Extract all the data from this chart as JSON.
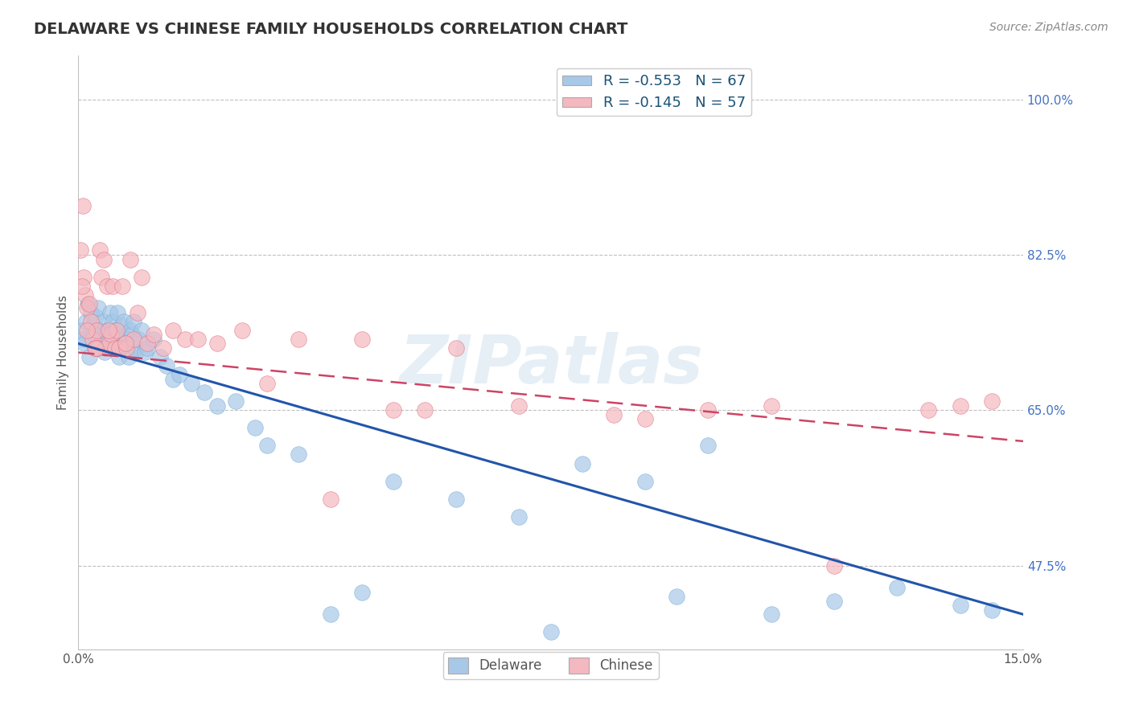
{
  "title": "DELAWARE VS CHINESE FAMILY HOUSEHOLDS CORRELATION CHART",
  "source": "Source: ZipAtlas.com",
  "ylabel": "Family Households",
  "xlim": [
    0.0,
    15.0
  ],
  "ylim": [
    38.0,
    105.0
  ],
  "yticks": [
    47.5,
    65.0,
    82.5,
    100.0
  ],
  "ytick_labels": [
    "47.5%",
    "65.0%",
    "82.5%",
    "100.0%"
  ],
  "delaware_color": "#a8c8e8",
  "delaware_edge": "#7aafd4",
  "chinese_color": "#f4b8c0",
  "chinese_edge": "#e07080",
  "delaware_line_color": "#2255aa",
  "chinese_line_color": "#cc4466",
  "delaware_R": -0.553,
  "delaware_N": 67,
  "chinese_R": -0.145,
  "chinese_N": 57,
  "legend_label_delaware": "Delaware",
  "legend_label_chinese": "Chinese",
  "watermark": "ZIPatlas",
  "title_fontsize": 14,
  "axis_label_fontsize": 11,
  "tick_fontsize": 11,
  "source_fontsize": 10,
  "delaware_scatter_x": [
    0.05,
    0.08,
    0.1,
    0.12,
    0.15,
    0.18,
    0.2,
    0.22,
    0.25,
    0.28,
    0.3,
    0.32,
    0.35,
    0.38,
    0.4,
    0.42,
    0.45,
    0.48,
    0.5,
    0.52,
    0.55,
    0.58,
    0.6,
    0.62,
    0.65,
    0.68,
    0.7,
    0.72,
    0.75,
    0.78,
    0.8,
    0.82,
    0.85,
    0.88,
    0.9,
    0.92,
    0.95,
    1.0,
    1.05,
    1.1,
    1.2,
    1.3,
    1.4,
    1.5,
    1.6,
    1.8,
    2.0,
    2.2,
    2.5,
    2.8,
    3.0,
    3.5,
    4.0,
    4.5,
    5.0,
    6.0,
    7.0,
    8.0,
    9.0,
    10.0,
    11.0,
    12.0,
    13.0,
    14.0,
    14.5,
    7.5,
    9.5
  ],
  "delaware_scatter_y": [
    74.0,
    73.0,
    72.5,
    75.0,
    77.0,
    71.0,
    76.0,
    74.5,
    73.5,
    75.5,
    72.0,
    76.5,
    74.0,
    73.0,
    75.0,
    71.5,
    74.0,
    73.5,
    76.0,
    72.0,
    75.0,
    74.0,
    73.0,
    76.0,
    71.0,
    74.5,
    73.0,
    75.0,
    72.5,
    73.0,
    71.0,
    74.0,
    73.5,
    75.0,
    72.0,
    71.5,
    73.0,
    74.0,
    71.5,
    72.0,
    73.0,
    71.0,
    70.0,
    68.5,
    69.0,
    68.0,
    67.0,
    65.5,
    66.0,
    63.0,
    61.0,
    60.0,
    42.0,
    44.5,
    57.0,
    55.0,
    53.0,
    59.0,
    57.0,
    61.0,
    42.0,
    43.5,
    45.0,
    43.0,
    42.5,
    40.0,
    44.0
  ],
  "chinese_scatter_x": [
    0.04,
    0.07,
    0.09,
    0.11,
    0.14,
    0.17,
    0.2,
    0.23,
    0.26,
    0.29,
    0.31,
    0.34,
    0.37,
    0.4,
    0.43,
    0.46,
    0.49,
    0.52,
    0.55,
    0.58,
    0.61,
    0.65,
    0.7,
    0.76,
    0.82,
    0.88,
    0.94,
    1.0,
    1.1,
    1.2,
    1.35,
    1.5,
    1.7,
    1.9,
    2.2,
    2.6,
    3.0,
    3.5,
    4.0,
    4.5,
    5.0,
    5.5,
    6.0,
    7.0,
    8.5,
    9.0,
    10.0,
    11.0,
    12.0,
    13.5,
    14.0,
    14.5,
    0.06,
    0.13,
    0.28,
    0.48,
    0.75
  ],
  "chinese_scatter_y": [
    83.0,
    88.0,
    80.0,
    78.0,
    76.5,
    77.0,
    75.0,
    73.0,
    72.0,
    74.0,
    72.0,
    83.0,
    80.0,
    82.0,
    72.0,
    79.0,
    72.5,
    73.5,
    79.0,
    72.0,
    74.0,
    72.0,
    79.0,
    72.0,
    82.0,
    73.0,
    76.0,
    80.0,
    72.5,
    73.5,
    72.0,
    74.0,
    73.0,
    73.0,
    72.5,
    74.0,
    68.0,
    73.0,
    55.0,
    73.0,
    65.0,
    65.0,
    72.0,
    65.5,
    64.5,
    64.0,
    65.0,
    65.5,
    47.5,
    65.0,
    65.5,
    66.0,
    79.0,
    74.0,
    72.0,
    74.0,
    72.5
  ]
}
